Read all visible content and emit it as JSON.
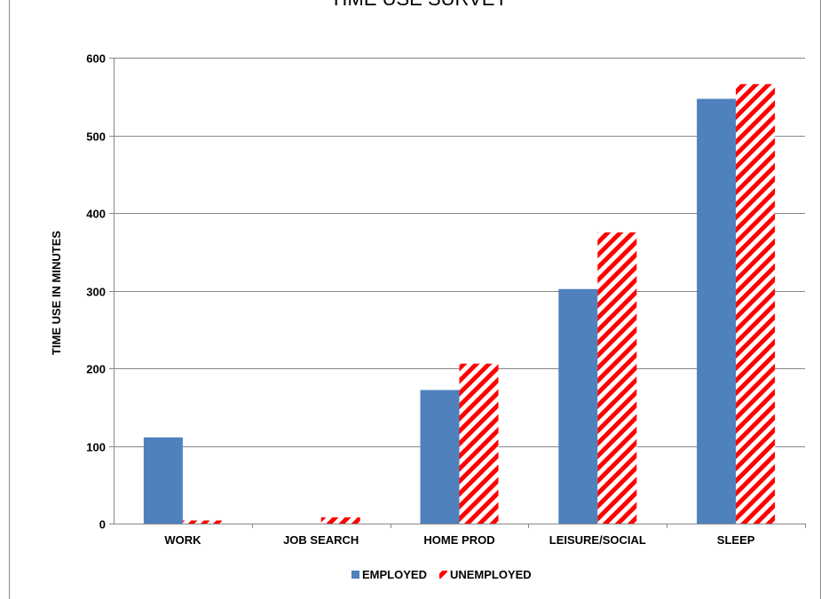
{
  "chart_data": {
    "type": "bar",
    "title": "TIME USE SURVEY",
    "ylabel": "TIME USE IN MINUTES",
    "xlabel": "",
    "categories": [
      "WORK",
      "JOB SEARCH",
      "HOME PROD",
      "LEISURE/SOCIAL",
      "SLEEP"
    ],
    "series": [
      {
        "name": "EMPLOYED",
        "values": [
          111,
          0,
          172,
          302,
          547
        ],
        "color": "#4F81BD",
        "pattern": "solid"
      },
      {
        "name": "UNEMPLOYED",
        "values": [
          4,
          8,
          206,
          375,
          566
        ],
        "color": "#FF0000",
        "pattern": "diagonal-stripes"
      }
    ],
    "ylim": [
      0,
      600
    ],
    "yticks": [
      "0",
      "100",
      "200",
      "300",
      "400",
      "500",
      "600"
    ],
    "grid": true,
    "legend_position": "bottom"
  }
}
